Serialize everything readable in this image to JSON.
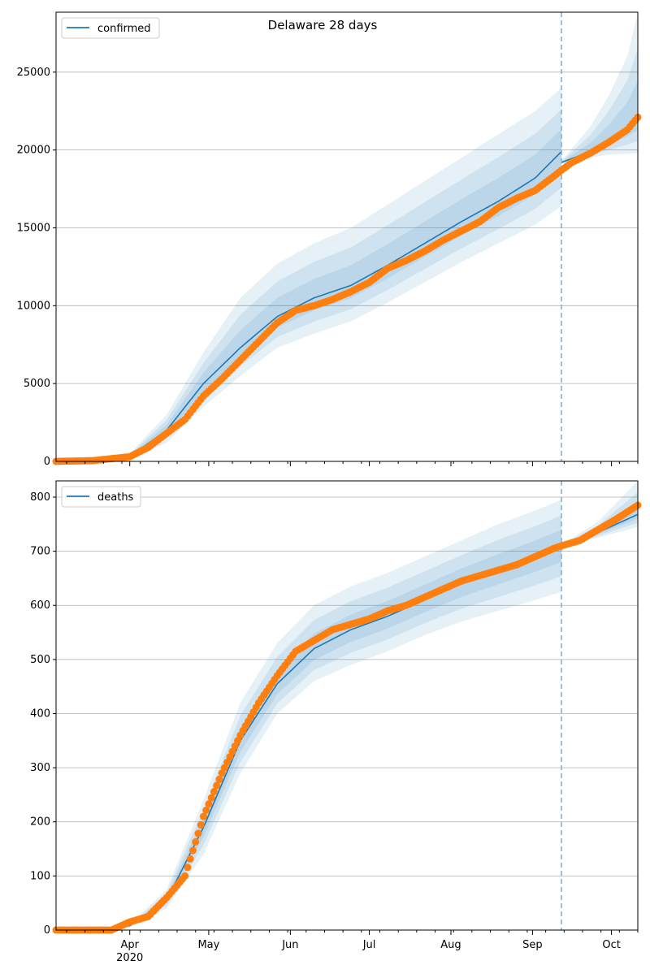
{
  "chart_data": [
    {
      "type": "line",
      "title": "Delaware 28 days",
      "legend": {
        "label": "confirmed",
        "placement": "top-left"
      },
      "xlim": [
        "2020-03-04",
        "2020-10-11"
      ],
      "ylim": [
        0,
        28850
      ],
      "yticks": [
        0,
        5000,
        10000,
        15000,
        20000,
        25000
      ],
      "ytick_labels": [
        "0",
        "5000",
        "10000",
        "15000",
        "20000",
        "25000"
      ],
      "grid": "y",
      "forecast_start": "2020-09-12",
      "inner_band_fractions": [
        0.35,
        0.66
      ],
      "observed": {
        "dates": [
          "2020-03-04",
          "2020-03-18",
          "2020-04-01",
          "2020-04-08",
          "2020-04-15",
          "2020-04-22",
          "2020-04-29",
          "2020-05-06",
          "2020-05-13",
          "2020-05-20",
          "2020-05-27",
          "2020-06-03",
          "2020-06-10",
          "2020-06-17",
          "2020-06-24",
          "2020-07-01",
          "2020-07-08",
          "2020-07-15",
          "2020-07-22",
          "2020-07-29",
          "2020-08-05",
          "2020-08-12",
          "2020-08-19",
          "2020-08-26",
          "2020-09-02",
          "2020-09-09",
          "2020-09-12",
          "2020-09-16",
          "2020-09-23",
          "2020-09-30",
          "2020-10-07",
          "2020-10-11"
        ],
        "values": [
          0,
          50,
          300,
          900,
          1800,
          2700,
          4200,
          5300,
          6500,
          7700,
          8900,
          9700,
          10000,
          10400,
          10900,
          11500,
          12400,
          12900,
          13500,
          14200,
          14800,
          15400,
          16300,
          16900,
          17400,
          18300,
          18700,
          19200,
          19800,
          20500,
          21300,
          22100
        ]
      },
      "fit": {
        "dates": [
          "2020-03-04",
          "2020-03-18",
          "2020-04-01",
          "2020-04-15",
          "2020-04-29",
          "2020-05-13",
          "2020-05-27",
          "2020-06-10",
          "2020-06-24",
          "2020-07-08",
          "2020-07-22",
          "2020-08-05",
          "2020-08-19",
          "2020-09-02",
          "2020-09-12"
        ],
        "median": [
          0,
          50,
          300,
          2000,
          5000,
          7300,
          9300,
          10500,
          11300,
          12600,
          14000,
          15400,
          16700,
          18200,
          19900
        ],
        "upper": [
          0,
          80,
          500,
          3000,
          7000,
          10500,
          12700,
          14000,
          15000,
          16500,
          18000,
          19500,
          21000,
          22500,
          24000
        ],
        "lower": [
          0,
          20,
          100,
          1200,
          3500,
          5500,
          7300,
          8200,
          9000,
          10200,
          11500,
          12800,
          14000,
          15200,
          16400
        ]
      },
      "forecast": {
        "dates": [
          "2020-09-12",
          "2020-09-23",
          "2020-09-30",
          "2020-10-07",
          "2020-10-11"
        ],
        "median": [
          19200,
          19900,
          20600,
          21500,
          22100
        ],
        "upper": [
          19300,
          21500,
          23500,
          26000,
          28800
        ],
        "lower": [
          19100,
          19500,
          19700,
          19750,
          19800
        ]
      }
    },
    {
      "type": "line",
      "legend": {
        "label": "deaths",
        "placement": "top-left"
      },
      "xlim": [
        "2020-03-04",
        "2020-10-11"
      ],
      "ylim": [
        0,
        830
      ],
      "yticks": [
        0,
        100,
        200,
        300,
        400,
        500,
        600,
        700,
        800
      ],
      "ytick_labels": [
        "0",
        "100",
        "200",
        "300",
        "400",
        "500",
        "600",
        "700",
        "800"
      ],
      "xtick_dates": [
        "2020-04-01",
        "2020-05-01",
        "2020-06-01",
        "2020-07-01",
        "2020-08-01",
        "2020-09-01",
        "2020-10-01"
      ],
      "xtick_labels": [
        "Apr",
        "May",
        "Jun",
        "Jul",
        "Aug",
        "Sep",
        "Oct"
      ],
      "xtick_year": "2020",
      "grid": "y",
      "forecast_start": "2020-09-12",
      "inner_band_fractions": [
        0.35,
        0.66
      ],
      "observed": {
        "dates": [
          "2020-03-04",
          "2020-03-25",
          "2020-04-01",
          "2020-04-08",
          "2020-04-15",
          "2020-04-22",
          "2020-04-29",
          "2020-05-06",
          "2020-05-13",
          "2020-05-20",
          "2020-05-27",
          "2020-06-03",
          "2020-06-10",
          "2020-06-17",
          "2020-06-24",
          "2020-07-01",
          "2020-07-08",
          "2020-07-15",
          "2020-07-22",
          "2020-07-29",
          "2020-08-05",
          "2020-08-12",
          "2020-08-19",
          "2020-08-26",
          "2020-09-02",
          "2020-09-09",
          "2020-09-12",
          "2020-09-19",
          "2020-09-26",
          "2020-10-03",
          "2020-10-11"
        ],
        "values": [
          0,
          0,
          15,
          25,
          60,
          100,
          210,
          290,
          360,
          420,
          470,
          515,
          535,
          555,
          565,
          575,
          590,
          600,
          615,
          630,
          645,
          655,
          665,
          675,
          690,
          705,
          710,
          720,
          740,
          760,
          785
        ]
      },
      "fit": {
        "dates": [
          "2020-03-04",
          "2020-03-25",
          "2020-04-01",
          "2020-04-15",
          "2020-04-29",
          "2020-05-13",
          "2020-05-27",
          "2020-06-10",
          "2020-06-24",
          "2020-07-08",
          "2020-07-22",
          "2020-08-05",
          "2020-08-19",
          "2020-09-02",
          "2020-09-12"
        ],
        "median": [
          0,
          2,
          8,
          55,
          190,
          350,
          455,
          520,
          555,
          580,
          610,
          640,
          665,
          690,
          710
        ],
        "upper": [
          0,
          3,
          10,
          75,
          240,
          420,
          530,
          600,
          635,
          660,
          690,
          720,
          750,
          775,
          795
        ],
        "lower": [
          0,
          1,
          5,
          40,
          140,
          290,
          400,
          460,
          490,
          515,
          545,
          570,
          590,
          610,
          625
        ]
      },
      "forecast": {
        "dates": [
          "2020-09-12",
          "2020-09-26",
          "2020-10-11"
        ],
        "median": [
          710,
          735,
          768
        ],
        "upper": [
          712,
          755,
          830
        ],
        "lower": [
          708,
          725,
          745
        ]
      }
    }
  ],
  "colors": {
    "line": "#1f77b4",
    "observed": "#ff7f0e",
    "band": "#1f77b4",
    "vline": "#7fb2d9",
    "grid": "#b0b0b0"
  }
}
